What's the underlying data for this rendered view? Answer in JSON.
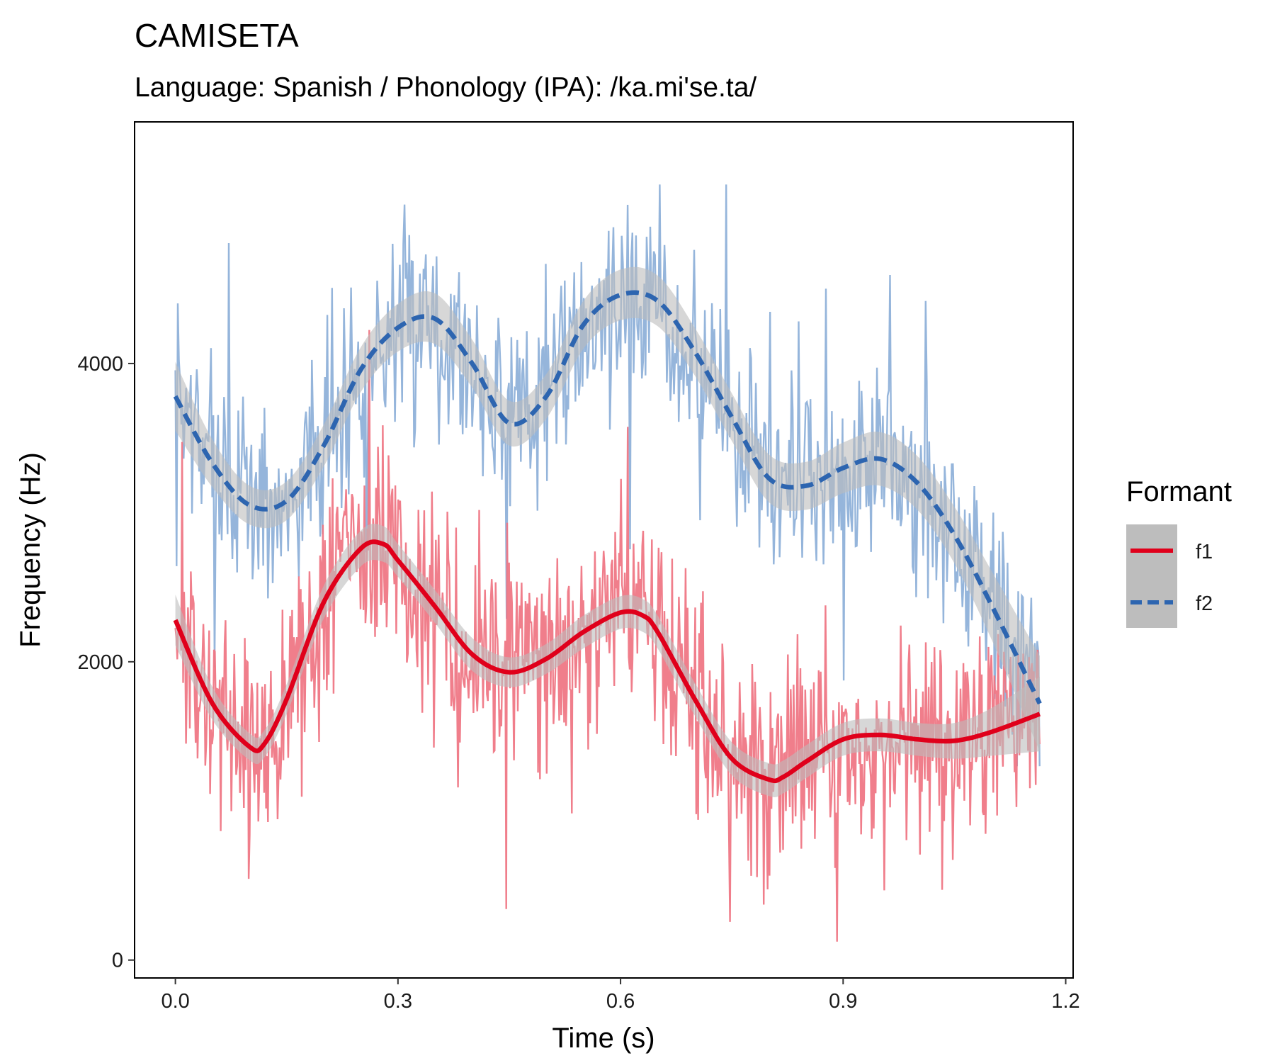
{
  "title": "CAMISETA",
  "subtitle": "Language: Spanish / Phonology (IPA): /ka.mi'se.ta/",
  "chart_data": {
    "type": "line",
    "title": "CAMISETA",
    "subtitle": "Language: Spanish / Phonology (IPA): /ka.mi'se.ta/",
    "xlabel": "Time (s)",
    "ylabel": "Frequency (Hz)",
    "xlim": [
      -0.055,
      1.21
    ],
    "ylim": [
      -120,
      5620
    ],
    "x_ticks": [
      0.0,
      0.3,
      0.6,
      0.9,
      1.2
    ],
    "x_tick_labels": [
      "0.0",
      "0.3",
      "0.6",
      "0.9",
      "1.2"
    ],
    "y_ticks": [
      0,
      2000,
      4000
    ],
    "y_tick_labels": [
      "0",
      "2000",
      "4000"
    ],
    "grid": false,
    "legend": {
      "title": "Formant",
      "placement": "right",
      "entries": [
        {
          "name": "f1",
          "color": "#E0001B",
          "style": "solid"
        },
        {
          "name": "f2",
          "color": "#2D65B0",
          "style": "dashed"
        }
      ]
    },
    "raw_colors": {
      "f1": "#EF7785",
      "f2": "#8FB1D9"
    },
    "band_color": "#BDBDBD",
    "series": [
      {
        "name": "f1",
        "kind": "smooth",
        "x": [
          0.0,
          0.05,
          0.1,
          0.12,
          0.15,
          0.2,
          0.25,
          0.28,
          0.3,
          0.35,
          0.4,
          0.45,
          0.5,
          0.55,
          0.6,
          0.63,
          0.65,
          0.7,
          0.75,
          0.8,
          0.82,
          0.85,
          0.9,
          0.95,
          1.0,
          1.05,
          1.1,
          1.165
        ],
        "y": [
          2280,
          1720,
          1430,
          1450,
          1750,
          2400,
          2760,
          2790,
          2680,
          2370,
          2050,
          1930,
          2020,
          2200,
          2330,
          2310,
          2200,
          1750,
          1350,
          1210,
          1230,
          1330,
          1480,
          1510,
          1480,
          1470,
          1530,
          1650
        ],
        "band": [
          170,
          110,
          90,
          90,
          100,
          110,
          120,
          120,
          110,
          110,
          110,
          100,
          100,
          110,
          110,
          110,
          110,
          110,
          110,
          110,
          110,
          110,
          110,
          110,
          110,
          120,
          160,
          250
        ]
      },
      {
        "name": "f2",
        "kind": "smooth",
        "x": [
          0.0,
          0.05,
          0.1,
          0.15,
          0.2,
          0.25,
          0.3,
          0.35,
          0.4,
          0.45,
          0.5,
          0.55,
          0.6,
          0.65,
          0.7,
          0.75,
          0.8,
          0.85,
          0.9,
          0.95,
          1.0,
          1.05,
          1.1,
          1.165
        ],
        "y": [
          3780,
          3330,
          3050,
          3080,
          3450,
          3960,
          4240,
          4300,
          4000,
          3600,
          3780,
          4260,
          4460,
          4420,
          4080,
          3640,
          3230,
          3180,
          3300,
          3360,
          3200,
          2850,
          2380,
          1720
        ],
        "band": [
          230,
          160,
          130,
          130,
          140,
          150,
          160,
          170,
          160,
          150,
          150,
          160,
          170,
          170,
          160,
          160,
          160,
          160,
          170,
          180,
          180,
          190,
          230,
          320
        ]
      }
    ]
  }
}
